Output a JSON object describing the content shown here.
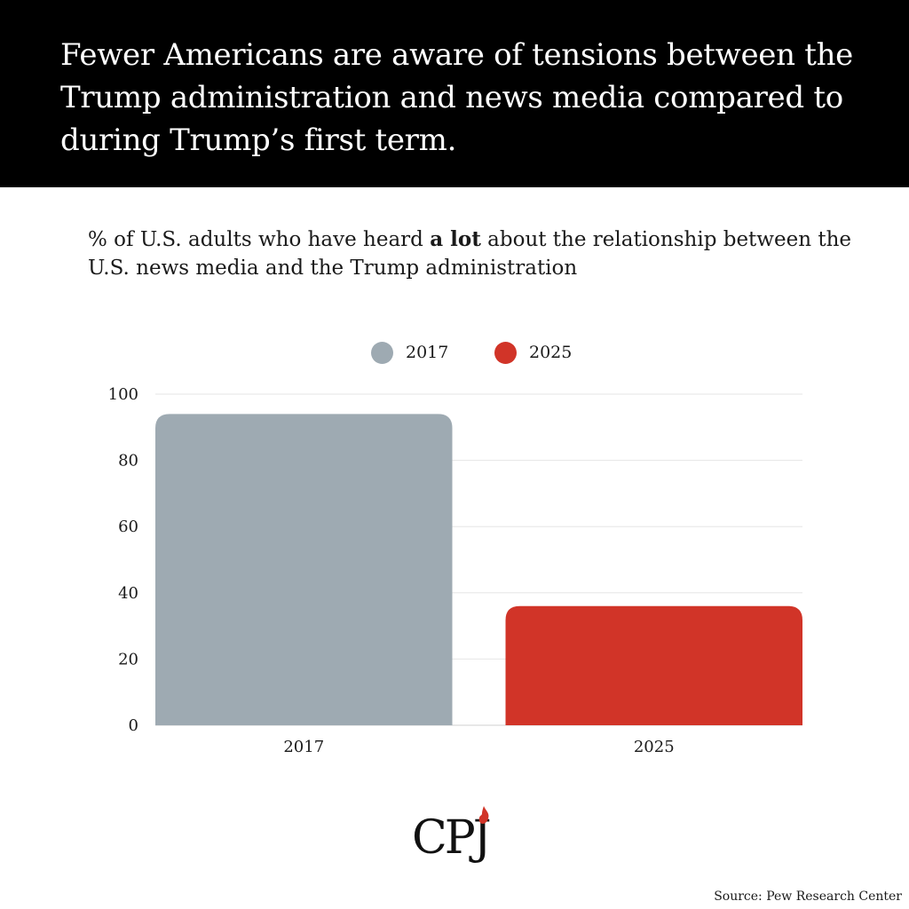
{
  "header": {
    "title": "Fewer Americans are aware of tensions between the Trump administration and news media compared to during Trump’s first term."
  },
  "subtitle": {
    "before": "% of U.S. adults who have heard ",
    "emphasis": "a lot",
    "after": " about the relationship between the U.S. news media and the Trump administration"
  },
  "legend": [
    {
      "label": "2017",
      "color": "#9eaab2"
    },
    {
      "label": "2025",
      "color": "#d13428"
    }
  ],
  "chart_data": {
    "type": "bar",
    "title": "% of U.S. adults who have heard a lot about the relationship between the U.S. news media and the Trump administration",
    "categories": [
      "2017",
      "2025"
    ],
    "values": [
      94,
      36
    ],
    "colors": [
      "#9eaab2",
      "#d13428"
    ],
    "ylim": [
      0,
      100
    ],
    "yticks": [
      0,
      20,
      40,
      60,
      80,
      100
    ],
    "xlabel": "",
    "ylabel": "",
    "grid": true,
    "legend_position": "top-center"
  },
  "logo": {
    "text": "CPJ"
  },
  "source": "Source: Pew Research Center"
}
